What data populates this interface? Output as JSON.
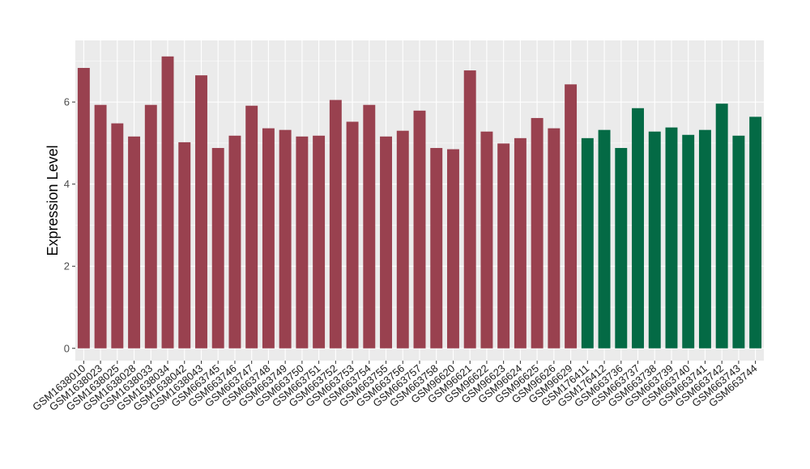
{
  "chart_data": {
    "type": "bar",
    "title": "",
    "xlabel": "",
    "ylabel": "Expression Level",
    "ylim": [
      -0.3,
      7.5
    ],
    "yticks": [
      0,
      2,
      4,
      6
    ],
    "grid": true,
    "legend": "none",
    "colors": {
      "group1": "#99414f",
      "group2": "#046a45",
      "panel": "#ebebeb",
      "grid": "#ffffff"
    },
    "categories": [
      "GSM1638010",
      "GSM1638023",
      "GSM1638025",
      "GSM1638028",
      "GSM1638033",
      "GSM1638034",
      "GSM1638042",
      "GSM1638043",
      "GSM663745",
      "GSM663746",
      "GSM663747",
      "GSM663748",
      "GSM663749",
      "GSM663750",
      "GSM663751",
      "GSM663752",
      "GSM663753",
      "GSM663754",
      "GSM663755",
      "GSM663756",
      "GSM663757",
      "GSM663758",
      "GSM96620",
      "GSM96621",
      "GSM96622",
      "GSM96623",
      "GSM96624",
      "GSM96625",
      "GSM96626",
      "GSM96629",
      "GSM176411",
      "GSM176412",
      "GSM663736",
      "GSM663737",
      "GSM663738",
      "GSM663739",
      "GSM663740",
      "GSM663741",
      "GSM663742",
      "GSM663743",
      "GSM663744"
    ],
    "values": [
      6.83,
      5.93,
      5.48,
      5.16,
      5.93,
      7.11,
      5.02,
      6.65,
      4.88,
      5.18,
      5.91,
      5.36,
      5.32,
      5.16,
      5.18,
      6.05,
      5.52,
      5.93,
      5.16,
      5.3,
      5.79,
      4.88,
      4.85,
      6.77,
      5.28,
      4.99,
      5.12,
      5.61,
      5.36,
      6.43,
      5.12,
      5.32,
      4.88,
      5.85,
      5.28,
      5.38,
      5.2,
      5.32,
      5.96,
      5.18,
      5.64
    ],
    "groups": [
      1,
      1,
      1,
      1,
      1,
      1,
      1,
      1,
      1,
      1,
      1,
      1,
      1,
      1,
      1,
      1,
      1,
      1,
      1,
      1,
      1,
      1,
      1,
      1,
      1,
      1,
      1,
      1,
      1,
      1,
      2,
      2,
      2,
      2,
      2,
      2,
      2,
      2,
      2,
      2,
      2
    ]
  }
}
